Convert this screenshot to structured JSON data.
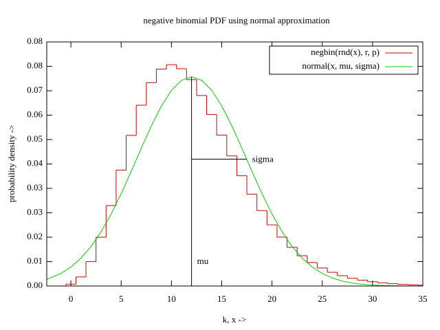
{
  "chart_data": {
    "type": "line",
    "title": "negative binomial PDF using normal approximation",
    "x_label": "k, x ->",
    "y_label": "probability density ->",
    "xlim": [
      -2.4,
      35
    ],
    "ylim": [
      0,
      0.085
    ],
    "xticks": [
      0,
      5,
      10,
      15,
      20,
      25,
      30,
      35
    ],
    "yticks": [
      {
        "value": 0,
        "label": "0.00"
      },
      {
        "value": 0.0085,
        "label": "0.01"
      },
      {
        "value": 0.017,
        "label": "0.02"
      },
      {
        "value": 0.0255,
        "label": "0.03"
      },
      {
        "value": 0.034,
        "label": "0.03"
      },
      {
        "value": 0.0425,
        "label": "0.04"
      },
      {
        "value": 0.051,
        "label": "0.05"
      },
      {
        "value": 0.0595,
        "label": "0.06"
      },
      {
        "value": 0.068,
        "label": "0.07"
      },
      {
        "value": 0.0765,
        "label": "0.08"
      },
      {
        "value": 0.085,
        "label": "0.08"
      }
    ],
    "grid": false,
    "legend": "top-right",
    "series": [
      {
        "name": "negbin(rnd(x), r, p)",
        "color": "#cc0000",
        "style": "steps",
        "x": [
          0,
          1,
          2,
          3,
          4,
          5,
          6,
          7,
          8,
          9,
          10,
          11,
          12,
          13,
          14,
          15,
          16,
          17,
          18,
          19,
          20,
          21,
          22,
          23,
          24,
          25,
          26,
          27,
          28,
          29,
          30,
          31,
          32,
          33,
          34,
          35
        ],
        "values": [
          0.000655,
          0.003146,
          0.008493,
          0.016987,
          0.028028,
          0.040361,
          0.052469,
          0.062963,
          0.070833,
          0.075555,
          0.077066,
          0.075665,
          0.071882,
          0.066352,
          0.059717,
          0.052551,
          0.045325,
          0.038393,
          0.031994,
          0.026269,
          0.021278,
          0.017022,
          0.013463,
          0.010536,
          0.008166,
          0.006271,
          0.004776,
          0.003608,
          0.002706,
          0.002016,
          0.001492,
          0.001097,
          0.000802,
          0.000583,
          0.000422,
          0.000304
        ]
      },
      {
        "name": "normal(x, mu, sigma)",
        "color": "#00cc00",
        "style": "line",
        "x": [
          -2.4,
          -1,
          0,
          1,
          2,
          3,
          4,
          5,
          6,
          7,
          8,
          9,
          10,
          11,
          12,
          13,
          14,
          15,
          16,
          17,
          18,
          19,
          20,
          21,
          22,
          23,
          24,
          25,
          26,
          27,
          28,
          29,
          30,
          31,
          32,
          33,
          34,
          35
        ],
        "values": [
          0.002299,
          0.004356,
          0.006608,
          0.009697,
          0.013758,
          0.018883,
          0.025068,
          0.032189,
          0.039975,
          0.048019,
          0.05579,
          0.062694,
          0.068143,
          0.071636,
          0.07284,
          0.071636,
          0.068143,
          0.062694,
          0.05579,
          0.048019,
          0.039975,
          0.032189,
          0.025068,
          0.018883,
          0.013758,
          0.009697,
          0.006608,
          0.004356,
          0.002778,
          0.001713,
          0.001022,
          0.00059,
          0.000329,
          0.000178,
          9.3e-05,
          4.68e-05,
          2.29e-05,
          1.08e-05
        ]
      }
    ],
    "mu_line": {
      "label": "mu",
      "x": 12,
      "y": [
        0,
        0.07284
      ]
    },
    "sigma_line": {
      "label": "sigma",
      "x": [
        12,
        17.477
      ],
      "y": 0.04418
    }
  }
}
